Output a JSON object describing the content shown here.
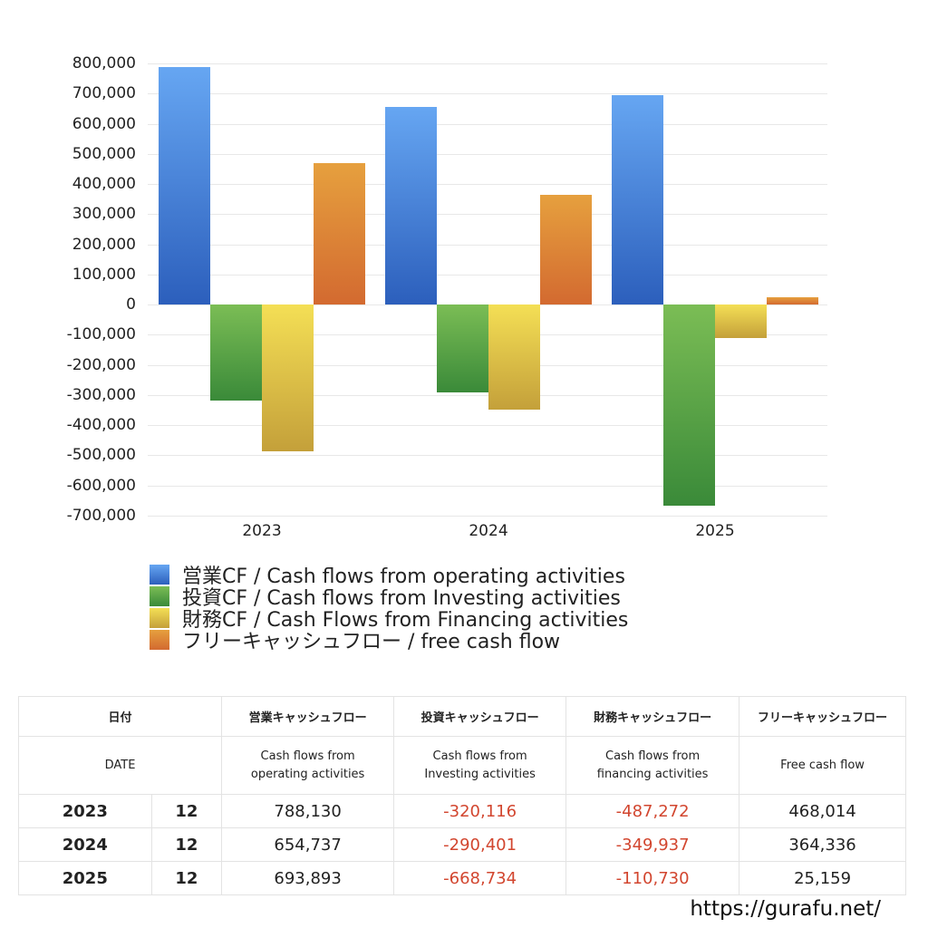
{
  "chart_data": {
    "type": "bar",
    "title": "",
    "xlabel": "",
    "ylabel": "",
    "categories": [
      "2023",
      "2024",
      "2025"
    ],
    "ylim": [
      -700000,
      800000
    ],
    "yticks": [
      "800,000",
      "700,000",
      "600,000",
      "500,000",
      "400,000",
      "300,000",
      "200,000",
      "100,000",
      "0",
      "-100,000",
      "-200,000",
      "-300,000",
      "-400,000",
      "-500,000",
      "-600,000",
      "-700,000"
    ],
    "grid": true,
    "legend_position": "bottom",
    "series": [
      {
        "name": "営業CF / Cash flows from operating activities",
        "color": "#3f7ed8",
        "values": [
          788130,
          654737,
          693893
        ]
      },
      {
        "name": "投資CF / Cash flows from Investing activities",
        "color": "#5aa34a",
        "values": [
          -320116,
          -290401,
          -668734
        ]
      },
      {
        "name": "財務CF / Cash Flows from Financing activities",
        "color": "#e2c441",
        "values": [
          -487272,
          -349937,
          -110730
        ]
      },
      {
        "name": "フリーキャッシュフロー / free cash flow",
        "color": "#db7a34",
        "values": [
          468014,
          364336,
          25159
        ]
      }
    ]
  },
  "table": {
    "header_jp": [
      "日付",
      "営業キャッシュフロー",
      "投資キャッシュフロー",
      "財務キャッシュフロー",
      "フリーキャッシュフロー"
    ],
    "header_en": [
      "DATE",
      "Cash flows from operating activities",
      "Cash flows from Investing activities",
      "Cash flows from financing activities",
      "Free cash flow"
    ],
    "rows": [
      {
        "year": "2023",
        "month": "12",
        "operating": "788,130",
        "investing": "-320,116",
        "financing": "-487,272",
        "free": "468,014"
      },
      {
        "year": "2024",
        "month": "12",
        "operating": "654,737",
        "investing": "-290,401",
        "financing": "-349,937",
        "free": "364,336"
      },
      {
        "year": "2025",
        "month": "12",
        "operating": "693,893",
        "investing": "-668,734",
        "financing": "-110,730",
        "free": "25,159"
      }
    ]
  },
  "footer": {
    "url": "https://gurafu.net/"
  }
}
